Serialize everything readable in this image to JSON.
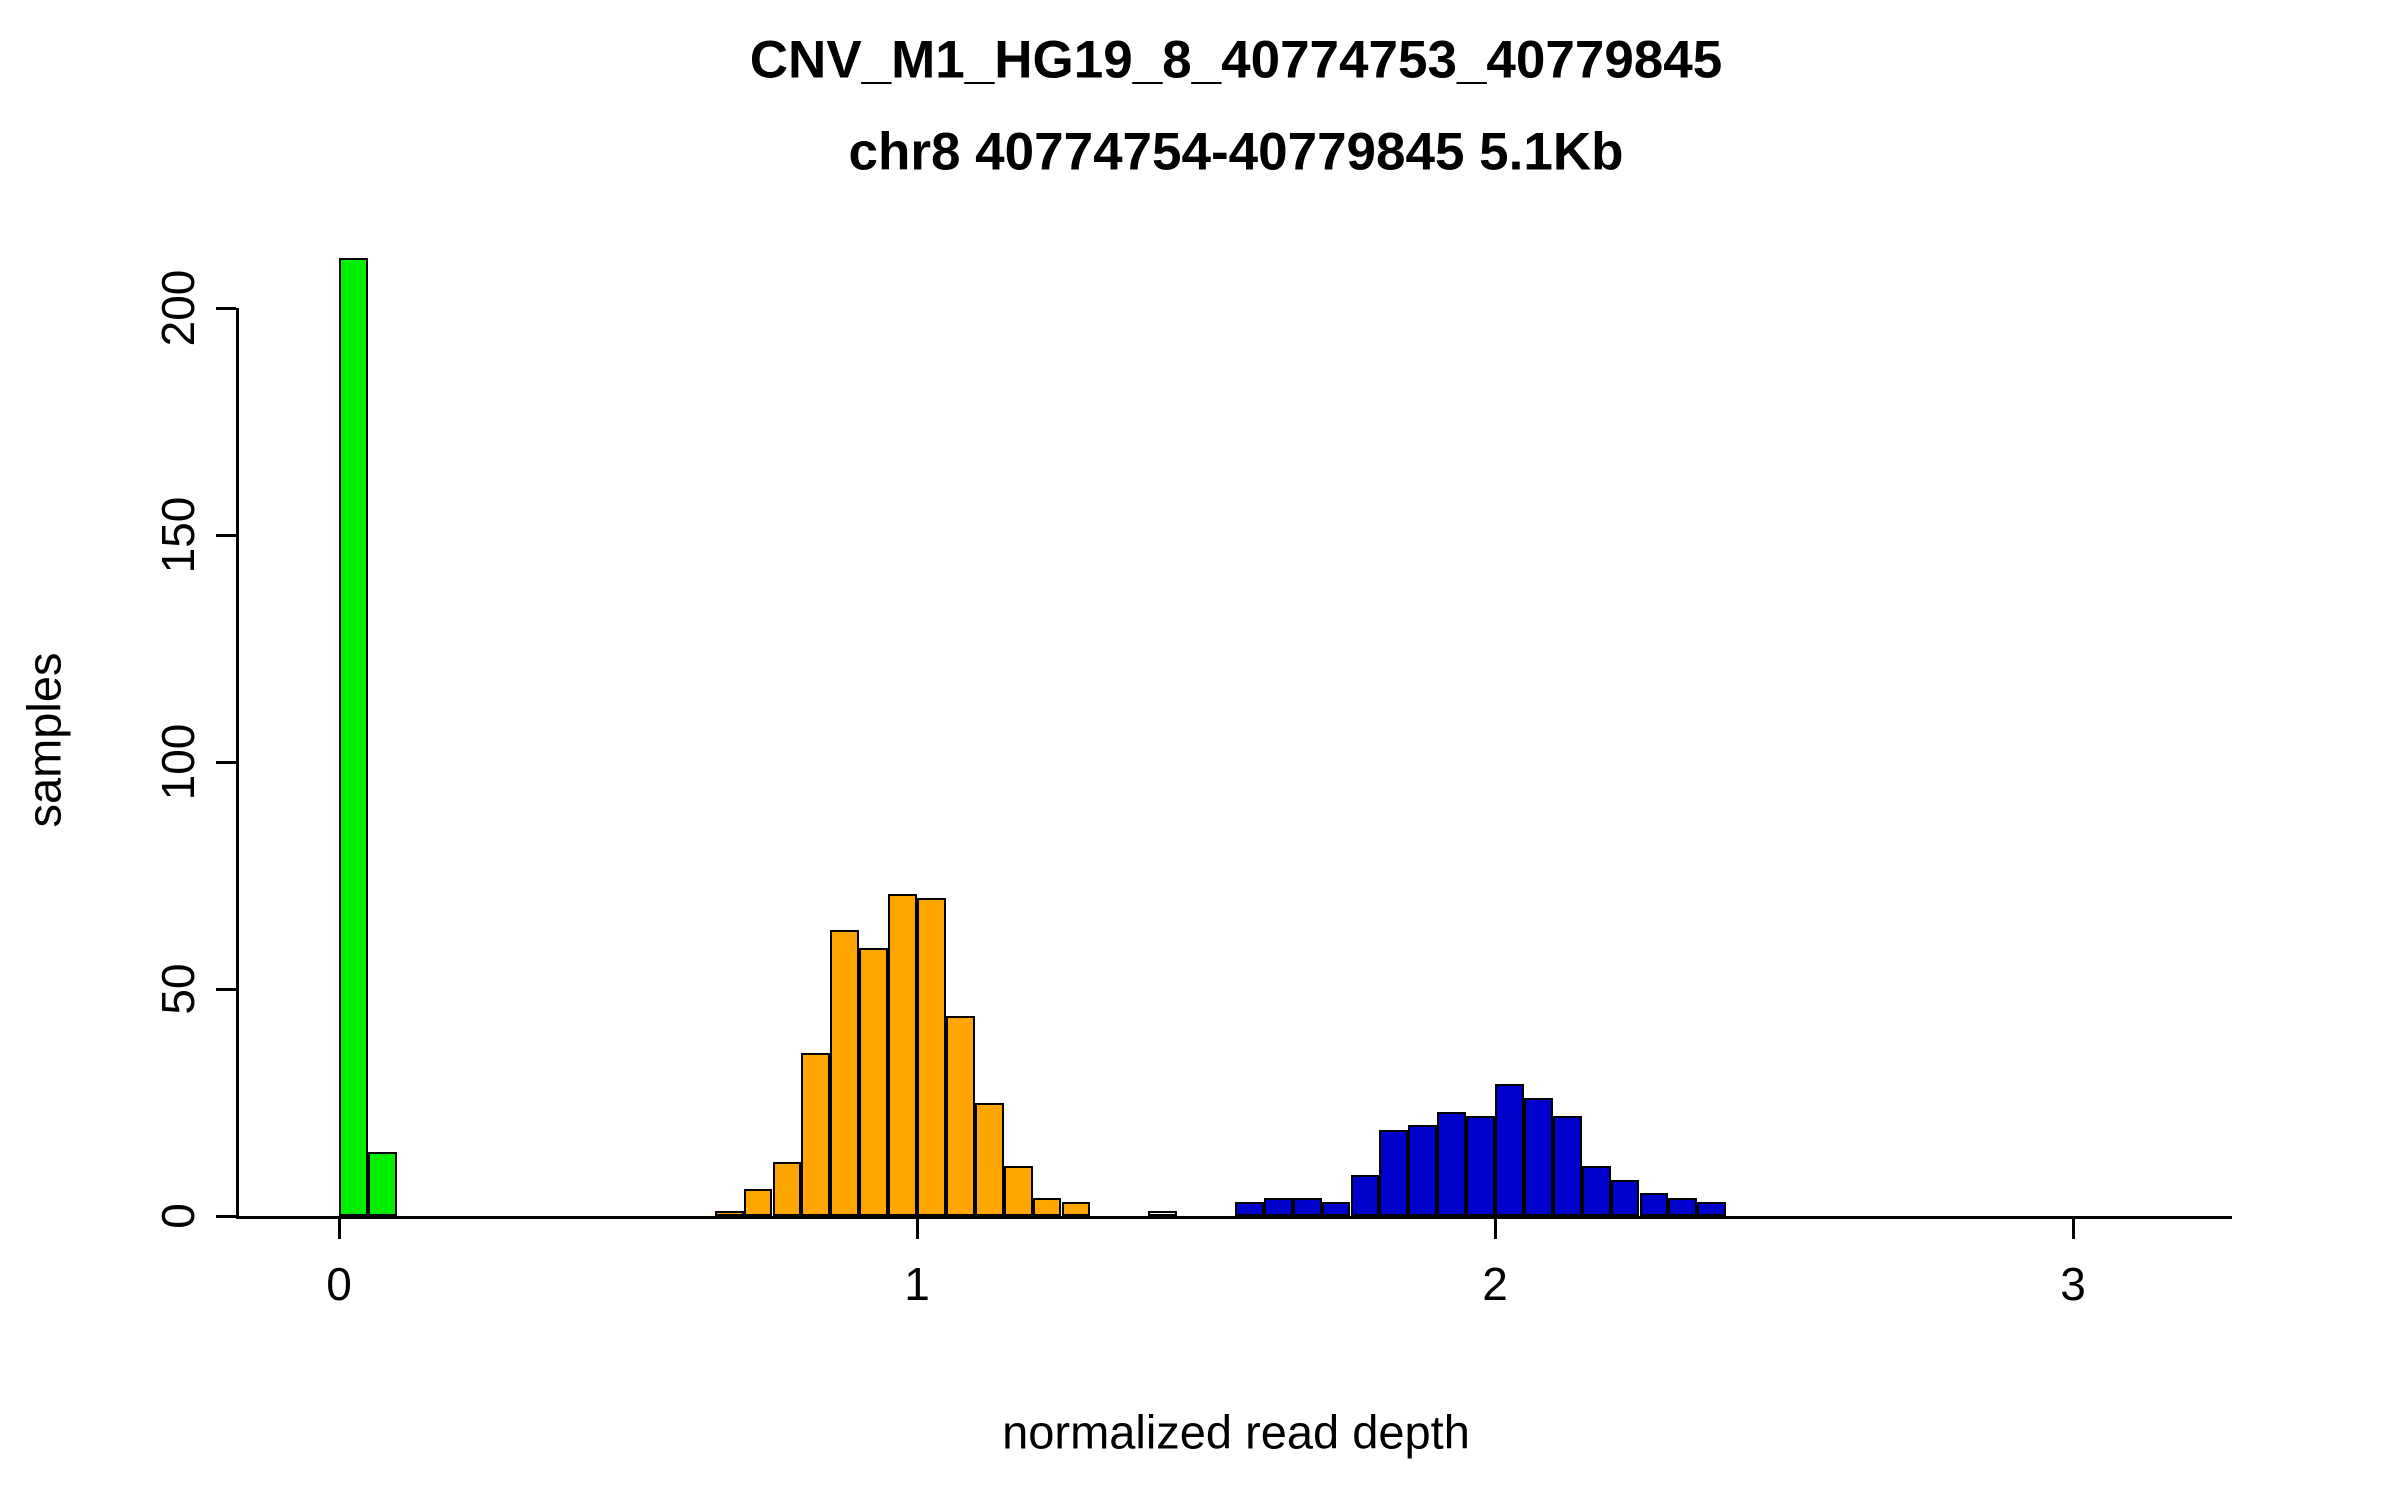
{
  "chart_data": {
    "type": "bar",
    "title": "CNV_M1_HG19_8_40774753_40779845",
    "subtitle": "chr8 40774754-40779845 5.1Kb",
    "xlabel": "normalized read depth",
    "ylabel": "samples",
    "xlim": [
      -0.17,
      3.27
    ],
    "ylim": [
      0,
      211
    ],
    "x_ticks": [
      0,
      1,
      2,
      3
    ],
    "y_ticks": [
      0,
      50,
      100,
      150,
      200
    ],
    "bin_width": 0.05,
    "grid": false,
    "legend": "none",
    "series": [
      {
        "name": "green",
        "color": "#00ee00",
        "bars": [
          {
            "x": 0.0,
            "v": 211
          },
          {
            "x": 0.05,
            "v": 14
          }
        ]
      },
      {
        "name": "orange",
        "color": "#ffa500",
        "bars": [
          {
            "x": 0.65,
            "v": 1
          },
          {
            "x": 0.7,
            "v": 6
          },
          {
            "x": 0.75,
            "v": 12
          },
          {
            "x": 0.8,
            "v": 36
          },
          {
            "x": 0.85,
            "v": 63
          },
          {
            "x": 0.9,
            "v": 59
          },
          {
            "x": 0.95,
            "v": 71
          },
          {
            "x": 1.0,
            "v": 70
          },
          {
            "x": 1.05,
            "v": 44
          },
          {
            "x": 1.1,
            "v": 25
          },
          {
            "x": 1.15,
            "v": 11
          },
          {
            "x": 1.2,
            "v": 4
          },
          {
            "x": 1.25,
            "v": 3
          }
        ]
      },
      {
        "name": "white",
        "color": "#ffffff",
        "bars": [
          {
            "x": 1.4,
            "v": 1
          }
        ]
      },
      {
        "name": "blue",
        "color": "#0000cd",
        "bars": [
          {
            "x": 1.55,
            "v": 3
          },
          {
            "x": 1.6,
            "v": 4
          },
          {
            "x": 1.65,
            "v": 4
          },
          {
            "x": 1.7,
            "v": 3
          },
          {
            "x": 1.75,
            "v": 9
          },
          {
            "x": 1.8,
            "v": 19
          },
          {
            "x": 1.85,
            "v": 20
          },
          {
            "x": 1.9,
            "v": 23
          },
          {
            "x": 1.95,
            "v": 22
          },
          {
            "x": 2.0,
            "v": 29
          },
          {
            "x": 2.05,
            "v": 26
          },
          {
            "x": 2.1,
            "v": 22
          },
          {
            "x": 2.15,
            "v": 11
          },
          {
            "x": 2.2,
            "v": 8
          },
          {
            "x": 2.25,
            "v": 5
          },
          {
            "x": 2.3,
            "v": 4
          },
          {
            "x": 2.35,
            "v": 3
          }
        ]
      }
    ]
  }
}
